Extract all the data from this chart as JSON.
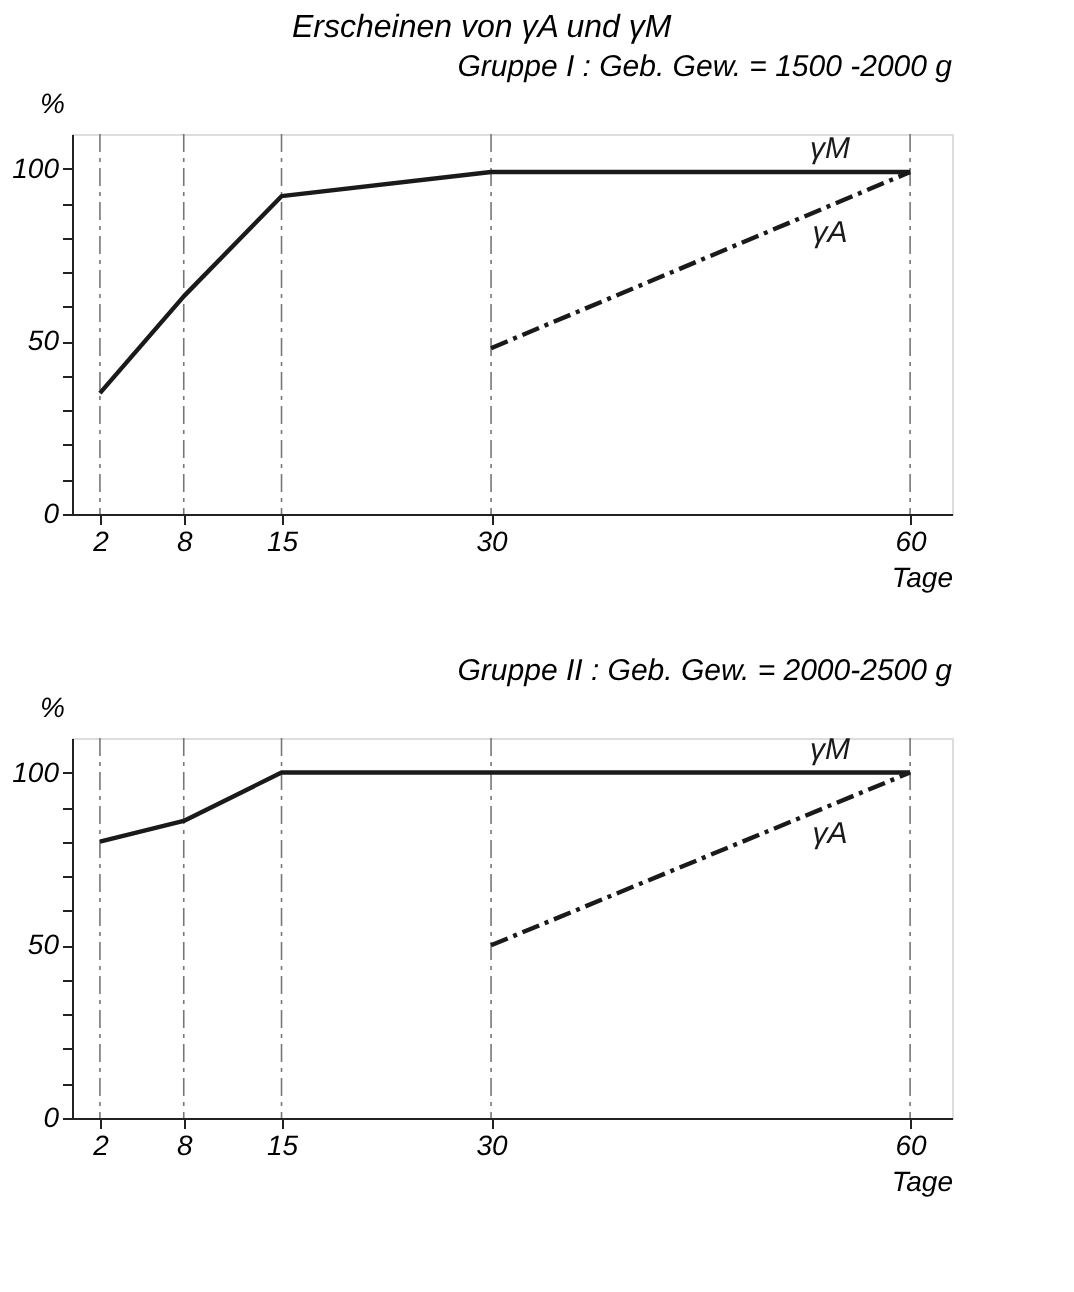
{
  "chart_data": [
    {
      "type": "line",
      "title": "Erscheinen von γA und γM",
      "subtitle": "Gruppe I : Geb. Gew. = 1500 -2000 g",
      "ylabel": "%",
      "xlabel": "Tage",
      "series": [
        {
          "name": "γM",
          "color": "#1a1a1a",
          "x": [
            2,
            8,
            15,
            30,
            60
          ],
          "values": [
            35,
            63,
            92,
            99,
            99
          ],
          "line_style": "solid"
        },
        {
          "name": "γA",
          "color": "#1a1a1a",
          "x": [
            30,
            60
          ],
          "values": [
            48,
            99
          ],
          "line_style": "dashed"
        }
      ],
      "xlim": [
        0,
        63
      ],
      "xticks": [
        2,
        8,
        15,
        30,
        60
      ],
      "ylim": [
        0,
        110
      ],
      "yticks": [
        0,
        {
          "value": 10,
          "label": null
        },
        {
          "value": 20,
          "label": null
        },
        {
          "value": 30,
          "label": null
        },
        {
          "value": 40,
          "label": null
        },
        50,
        {
          "value": 60,
          "label": null
        },
        {
          "value": 70,
          "label": null
        },
        {
          "value": 80,
          "label": null
        },
        {
          "value": 90,
          "label": null
        },
        100
      ],
      "ref_lines": [
        {
          "axis": "x",
          "value": 2,
          "line_style": "dashed"
        },
        {
          "axis": "x",
          "value": 8,
          "line_style": "dashed"
        },
        {
          "axis": "x",
          "value": 15,
          "line_style": "dashed"
        },
        {
          "axis": "x",
          "value": 30,
          "line_style": "dashed"
        },
        {
          "axis": "x",
          "value": 60,
          "line_style": "dashed"
        }
      ],
      "grid": false,
      "marker": "none"
    },
    {
      "type": "line",
      "subtitle": "Gruppe II : Geb. Gew. = 2000-2500 g",
      "ylabel": "%",
      "xlabel": "Tage",
      "series": [
        {
          "name": "γM",
          "color": "#1a1a1a",
          "x": [
            2,
            8,
            15,
            30,
            60
          ],
          "values": [
            80,
            86,
            100,
            100,
            100
          ],
          "line_style": "solid"
        },
        {
          "name": "γA",
          "color": "#1a1a1a",
          "x": [
            30,
            60
          ],
          "values": [
            50,
            100
          ],
          "line_style": "dashed"
        }
      ],
      "xlim": [
        0,
        63
      ],
      "xticks": [
        2,
        8,
        15,
        30,
        60
      ],
      "ylim": [
        0,
        110
      ],
      "yticks": [
        0,
        {
          "value": 10,
          "label": null
        },
        {
          "value": 20,
          "label": null
        },
        {
          "value": 30,
          "label": null
        },
        {
          "value": 40,
          "label": null
        },
        50,
        {
          "value": 60,
          "label": null
        },
        {
          "value": 70,
          "label": null
        },
        {
          "value": 80,
          "label": null
        },
        {
          "value": 90,
          "label": null
        },
        100
      ],
      "ref_lines": [
        {
          "axis": "x",
          "value": 2,
          "line_style": "dashed"
        },
        {
          "axis": "x",
          "value": 8,
          "line_style": "dashed"
        },
        {
          "axis": "x",
          "value": 15,
          "line_style": "dashed"
        },
        {
          "axis": "x",
          "value": 30,
          "line_style": "dashed"
        },
        {
          "axis": "x",
          "value": 60,
          "line_style": "dashed"
        }
      ],
      "grid": false,
      "marker": "none"
    }
  ]
}
